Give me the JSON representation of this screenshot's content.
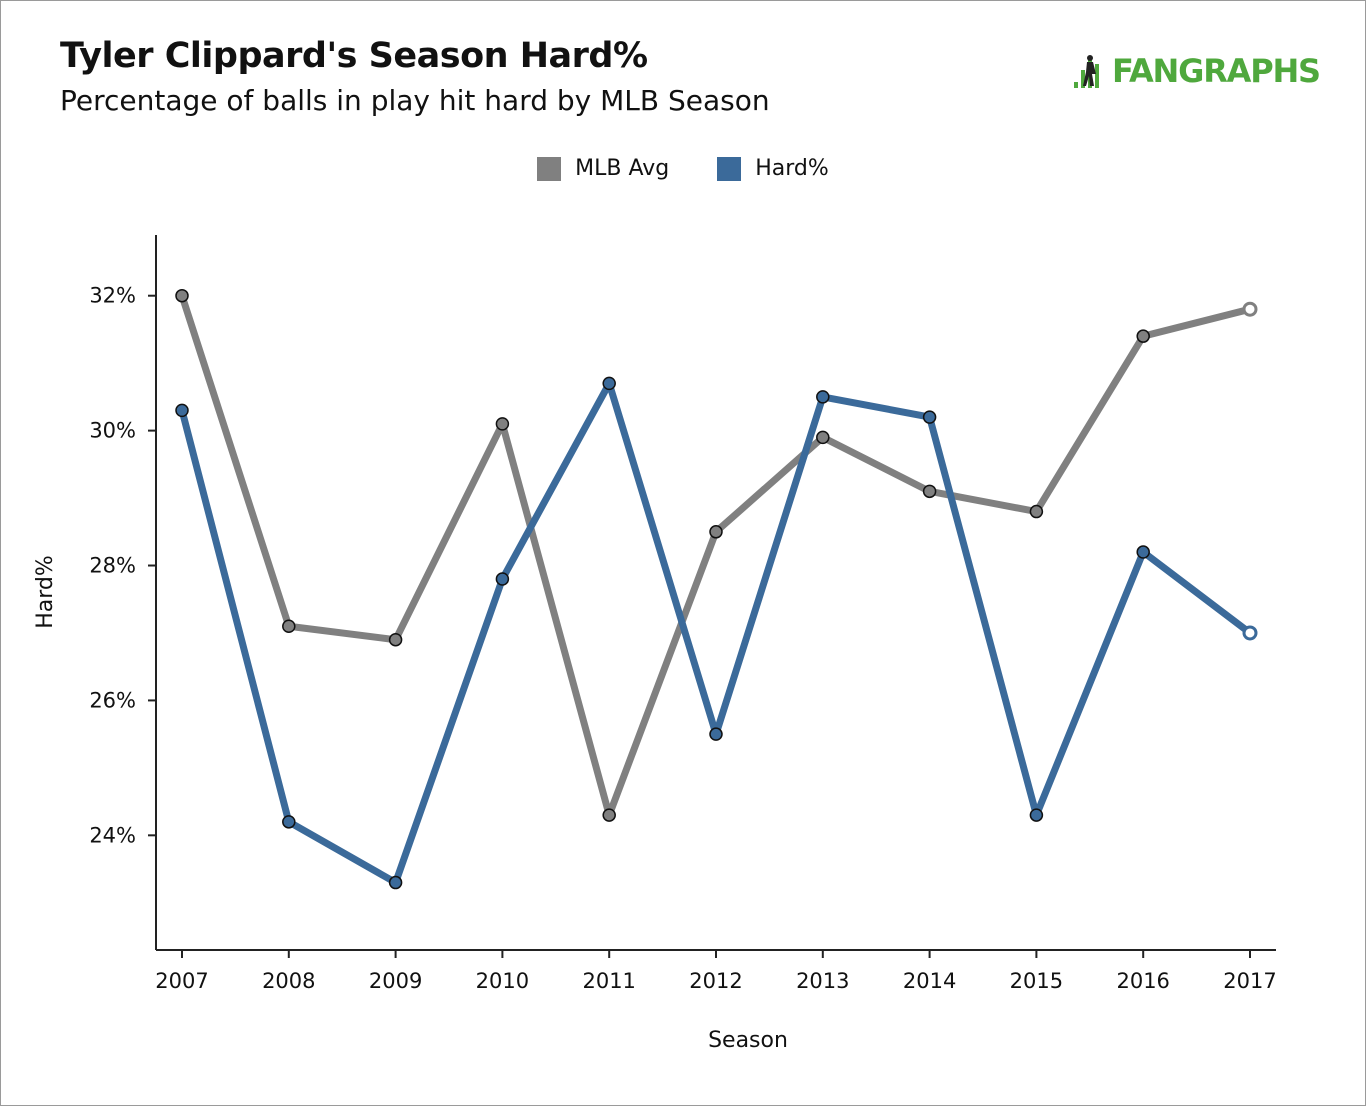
{
  "header": {
    "title": "Tyler Clippard's Season Hard%",
    "subtitle": "Percentage of balls in play hit hard by MLB Season",
    "logo_text": "FANGRAPHS"
  },
  "colors": {
    "mlb_avg": "#808080",
    "hard": "#3b6a9a",
    "logo_green": "#4fa83d"
  },
  "chart_data": {
    "type": "line",
    "xlabel": "Season",
    "ylabel": "Hard%",
    "x": [
      2007,
      2008,
      2009,
      2010,
      2011,
      2012,
      2013,
      2014,
      2015,
      2016,
      2017
    ],
    "ylim": [
      22.3,
      32.9
    ],
    "yticks": [
      24,
      26,
      28,
      30,
      32
    ],
    "ytick_labels": [
      "24%",
      "26%",
      "28%",
      "30%",
      "32%"
    ],
    "legend_position": "top-center",
    "grid": false,
    "series": [
      {
        "name": "MLB Avg",
        "color": "#808080",
        "values": [
          32.0,
          27.1,
          26.9,
          30.1,
          24.3,
          28.5,
          29.9,
          29.1,
          28.8,
          31.4,
          31.8
        ],
        "last_point_hollow": true
      },
      {
        "name": "Hard%",
        "color": "#3b6a9a",
        "values": [
          30.3,
          24.2,
          23.3,
          27.8,
          30.7,
          25.5,
          30.5,
          30.2,
          24.3,
          28.2,
          27.0
        ],
        "last_point_hollow": true
      }
    ]
  }
}
